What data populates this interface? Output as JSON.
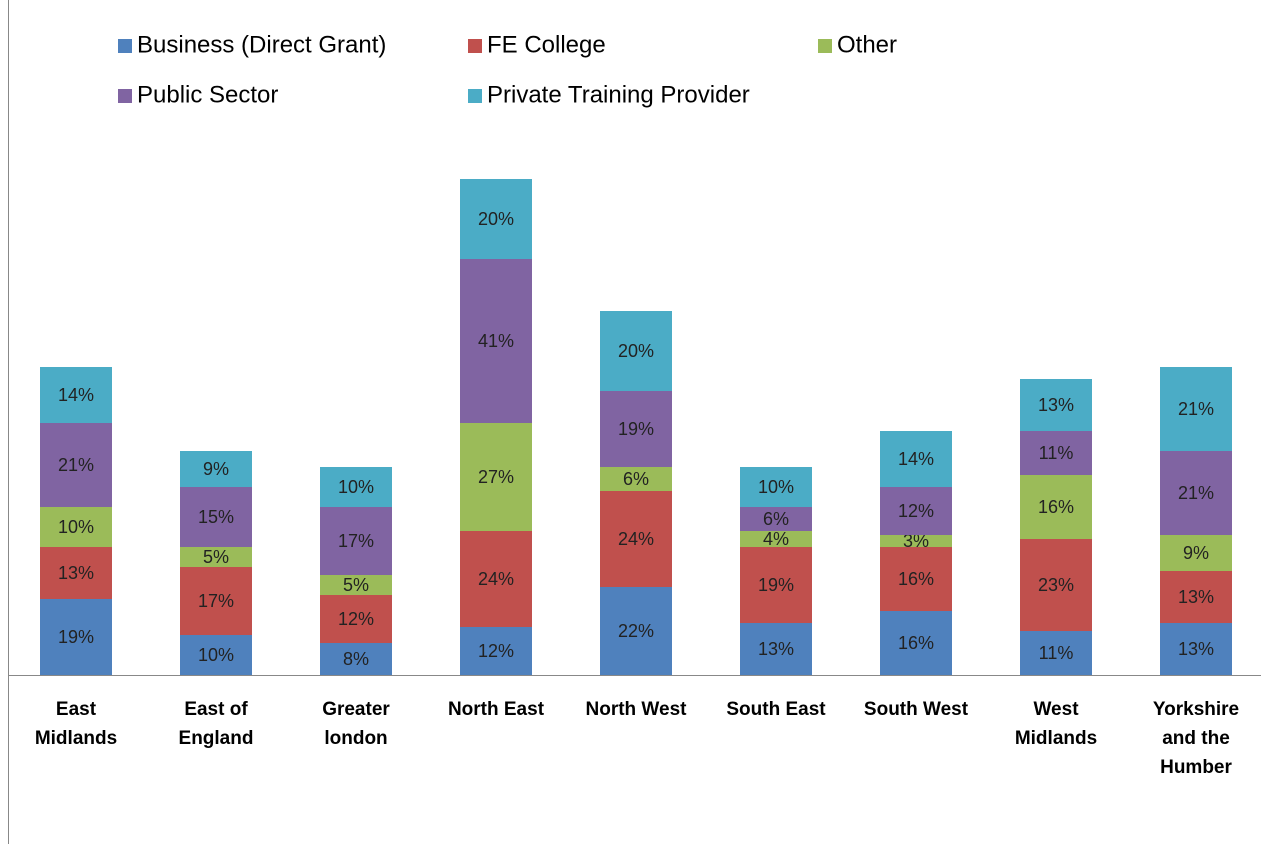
{
  "chart_data": {
    "type": "stacked_bar",
    "categories": [
      "East Midlands",
      "East of England",
      "Greater london",
      "North East",
      "North West",
      "South East",
      "South West",
      "West Midlands",
      "Yorkshire and the Humber"
    ],
    "series": [
      {
        "name": "Business (Direct Grant)",
        "color": "#4f81bd",
        "values": [
          19,
          10,
          8,
          12,
          22,
          13,
          16,
          11,
          13
        ],
        "value_labels": [
          "19%",
          "10%",
          "8%",
          "12%",
          "22%",
          "13%",
          "16%",
          "11%",
          "13%"
        ]
      },
      {
        "name": "FE College",
        "color": "#c0504d",
        "values": [
          13,
          17,
          12,
          24,
          24,
          19,
          16,
          23,
          13
        ],
        "value_labels": [
          "13%",
          "17%",
          "12%",
          "24%",
          "24%",
          "19%",
          "16%",
          "23%",
          "13%"
        ]
      },
      {
        "name": "Other",
        "color": "#9bbb59",
        "values": [
          10,
          5,
          5,
          27,
          6,
          4,
          3,
          16,
          9
        ],
        "value_labels": [
          "10%",
          "5%",
          "5%",
          "27%",
          "6%",
          "4%",
          "3%",
          "16%",
          "9%"
        ]
      },
      {
        "name": "Public Sector",
        "color": "#8064a2",
        "values": [
          21,
          15,
          17,
          41,
          19,
          6,
          12,
          11,
          21
        ],
        "value_labels": [
          "21%",
          "15%",
          "17%",
          "41%",
          "19%",
          "6%",
          "12%",
          "11%",
          "21%"
        ]
      },
      {
        "name": "Private Training Provider",
        "color": "#4bacc6",
        "values": [
          14,
          9,
          10,
          20,
          20,
          10,
          14,
          13,
          21
        ],
        "value_labels": [
          "14%",
          "9%",
          "10%",
          "20%",
          "20%",
          "10%",
          "14%",
          "13%",
          "21%"
        ]
      }
    ],
    "ylim": [
      0,
      130
    ]
  }
}
